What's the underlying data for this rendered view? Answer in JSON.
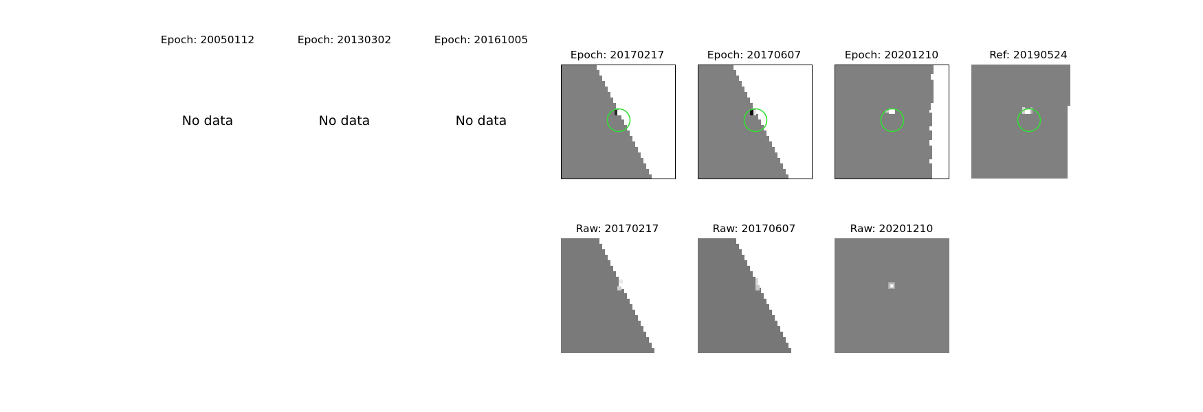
{
  "empty_panels": [
    {
      "title": "Epoch: 20050112",
      "message": "No data"
    },
    {
      "title": "Epoch: 20130302",
      "message": "No data"
    },
    {
      "title": "Epoch: 20161005",
      "message": "No data"
    }
  ],
  "difference_panels": [
    {
      "title": "Epoch: 20170217"
    },
    {
      "title": "Epoch: 20170607"
    },
    {
      "title": "Epoch: 20201210"
    }
  ],
  "reference_panel": {
    "title": "Ref: 20190524"
  },
  "raw_panels": [
    {
      "title": "Raw: 20170217"
    },
    {
      "title": "Raw: 20170607"
    },
    {
      "title": "Raw: 20201210"
    }
  ],
  "colors": {
    "background_gray": "#808080",
    "raw_gray": "#7a7a7a",
    "marker_green": "#33dd33",
    "frame": "#000000"
  }
}
